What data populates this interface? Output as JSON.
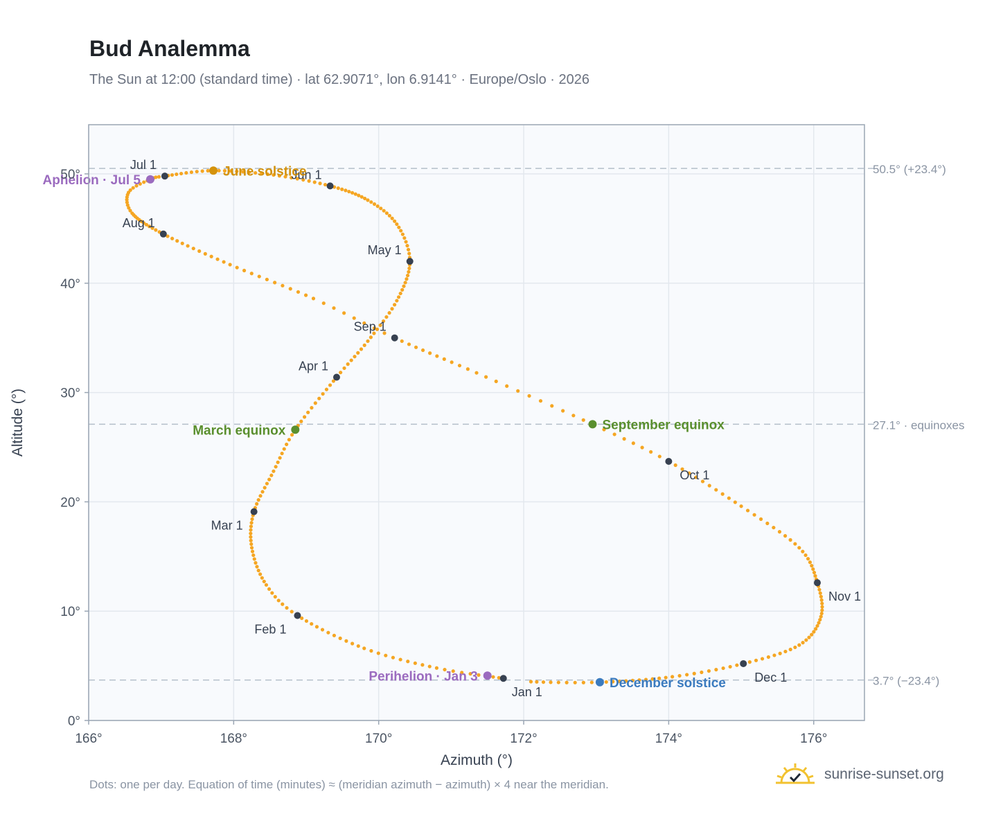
{
  "header": {
    "title": "Bud Analemma",
    "subtitle": "The Sun at 12:00 (standard time) · lat 62.9071°, lon 6.9141° · Europe/Oslo · 2026"
  },
  "footer": {
    "note": "Dots: one per day. Equation of time (minutes) ≈ (meridian azimuth − azimuth) × 4 near the meridian.",
    "brand": "sunrise-sunset.org",
    "brand_icon": "sun-logo-icon"
  },
  "colors": {
    "curve": "#f5a623",
    "month_marker": "#374151",
    "solstice_june": "#d4920c",
    "equinox": "#5a8f2e",
    "solstice_december": "#3b7bbf",
    "apsis": "#9b6bbf",
    "plot_bg": "#f8fafd",
    "grid": "#e3e8ee",
    "ref_line": "#b4bfca"
  },
  "chart_data": {
    "type": "scatter",
    "title": "Bud Analemma",
    "xlabel": "Azimuth (°)",
    "ylabel": "Altitude (°)",
    "xlim": [
      166,
      176.7
    ],
    "ylim": [
      0,
      54.5
    ],
    "x_ticks": [
      {
        "value": 166,
        "label": "166°"
      },
      {
        "value": 168,
        "label": "168°"
      },
      {
        "value": 170,
        "label": "170°"
      },
      {
        "value": 172,
        "label": "172°"
      },
      {
        "value": 174,
        "label": "174°"
      },
      {
        "value": 176,
        "label": "176°"
      }
    ],
    "y_ticks": [
      {
        "value": 0,
        "label": "0°"
      },
      {
        "value": 10,
        "label": "10°"
      },
      {
        "value": 20,
        "label": "20°"
      },
      {
        "value": 30,
        "label": "30°"
      },
      {
        "value": 40,
        "label": "40°"
      },
      {
        "value": 50,
        "label": "50°"
      }
    ],
    "grid": true,
    "reference_lines": [
      {
        "y": 50.5,
        "label": "50.5° (+23.4°)"
      },
      {
        "y": 27.1,
        "label": "27.1° · equinoxes"
      },
      {
        "y": 3.7,
        "label": "3.7° (−23.4°)"
      }
    ],
    "month_markers": [
      {
        "label": "Jan 1",
        "x": 171.72,
        "y": 3.85,
        "anchor": "below"
      },
      {
        "label": "Feb 1",
        "x": 168.88,
        "y": 9.6,
        "anchor": "below-left"
      },
      {
        "label": "Mar 1",
        "x": 168.28,
        "y": 19.1,
        "anchor": "below-left"
      },
      {
        "label": "Apr 1",
        "x": 169.42,
        "y": 31.4,
        "anchor": "above-left"
      },
      {
        "label": "May 1",
        "x": 170.43,
        "y": 42.0,
        "anchor": "above-left"
      },
      {
        "label": "Jun 1",
        "x": 169.33,
        "y": 48.9,
        "anchor": "above-left"
      },
      {
        "label": "Jul 1",
        "x": 167.05,
        "y": 49.8,
        "anchor": "above-left"
      },
      {
        "label": "Aug 1",
        "x": 167.03,
        "y": 44.5,
        "anchor": "above-left"
      },
      {
        "label": "Sep 1",
        "x": 170.22,
        "y": 35.0,
        "anchor": "above-left"
      },
      {
        "label": "Oct 1",
        "x": 174.0,
        "y": 23.7,
        "anchor": "below-right"
      },
      {
        "label": "Nov 1",
        "x": 176.05,
        "y": 12.6,
        "anchor": "below-right"
      },
      {
        "label": "Dec 1",
        "x": 175.03,
        "y": 5.2,
        "anchor": "below-right"
      }
    ],
    "events": [
      {
        "label": "June solstice",
        "x": 167.72,
        "y": 50.3,
        "color_key": "solstice_june",
        "side": "right"
      },
      {
        "label": "March equinox",
        "x": 168.85,
        "y": 26.6,
        "color_key": "equinox",
        "side": "left"
      },
      {
        "label": "September equinox",
        "x": 172.95,
        "y": 27.1,
        "color_key": "equinox",
        "side": "right"
      },
      {
        "label": "December solstice",
        "x": 173.05,
        "y": 3.5,
        "color_key": "solstice_december",
        "side": "right"
      },
      {
        "label": "Aphelion · Jul 5",
        "x": 166.85,
        "y": 49.5,
        "color_key": "apsis",
        "side": "left"
      },
      {
        "label": "Perihelion · Jan 3",
        "x": 171.5,
        "y": 4.1,
        "color_key": "apsis",
        "side": "left"
      }
    ],
    "series": [
      {
        "type": "daily-dots",
        "path_keypoints": [
          {
            "day": 1,
            "x": 171.72,
            "y": 3.85
          },
          {
            "day": 10,
            "x": 170.8,
            "y": 4.8
          },
          {
            "day": 20,
            "x": 169.8,
            "y": 6.6
          },
          {
            "day": 32,
            "x": 168.88,
            "y": 9.6
          },
          {
            "day": 40,
            "x": 168.45,
            "y": 12.4
          },
          {
            "day": 50,
            "x": 168.25,
            "y": 15.8
          },
          {
            "day": 60,
            "x": 168.28,
            "y": 19.1
          },
          {
            "day": 70,
            "x": 168.55,
            "y": 22.8
          },
          {
            "day": 79,
            "x": 168.85,
            "y": 26.6
          },
          {
            "day": 91,
            "x": 169.42,
            "y": 31.4
          },
          {
            "day": 100,
            "x": 169.85,
            "y": 34.7
          },
          {
            "day": 110,
            "x": 170.25,
            "y": 38.4
          },
          {
            "day": 121,
            "x": 170.43,
            "y": 42.0
          },
          {
            "day": 131,
            "x": 170.25,
            "y": 45.4
          },
          {
            "day": 141,
            "x": 169.85,
            "y": 47.6
          },
          {
            "day": 152,
            "x": 169.33,
            "y": 48.9
          },
          {
            "day": 162,
            "x": 168.55,
            "y": 49.9
          },
          {
            "day": 172,
            "x": 167.72,
            "y": 50.3
          },
          {
            "day": 182,
            "x": 167.05,
            "y": 49.8
          },
          {
            "day": 186,
            "x": 166.85,
            "y": 49.5
          },
          {
            "day": 193,
            "x": 166.55,
            "y": 48.3
          },
          {
            "day": 201,
            "x": 166.6,
            "y": 46.4
          },
          {
            "day": 213,
            "x": 167.03,
            "y": 44.5
          },
          {
            "day": 225,
            "x": 167.95,
            "y": 41.7
          },
          {
            "day": 236,
            "x": 169.1,
            "y": 38.6
          },
          {
            "day": 244,
            "x": 170.22,
            "y": 35.0
          },
          {
            "day": 255,
            "x": 171.35,
            "y": 31.8
          },
          {
            "day": 266,
            "x": 172.95,
            "y": 27.1
          },
          {
            "day": 274,
            "x": 174.0,
            "y": 23.7
          },
          {
            "day": 285,
            "x": 175.0,
            "y": 19.6
          },
          {
            "day": 295,
            "x": 175.8,
            "y": 15.8
          },
          {
            "day": 305,
            "x": 176.05,
            "y": 12.6
          },
          {
            "day": 315,
            "x": 176.1,
            "y": 9.5
          },
          {
            "day": 325,
            "x": 175.8,
            "y": 6.9
          },
          {
            "day": 335,
            "x": 175.03,
            "y": 5.2
          },
          {
            "day": 345,
            "x": 174.05,
            "y": 4.0
          },
          {
            "day": 356,
            "x": 173.05,
            "y": 3.5
          },
          {
            "day": 365,
            "x": 172.1,
            "y": 3.55
          },
          {
            "day": 366,
            "x": 171.72,
            "y": 3.85
          }
        ]
      }
    ]
  }
}
